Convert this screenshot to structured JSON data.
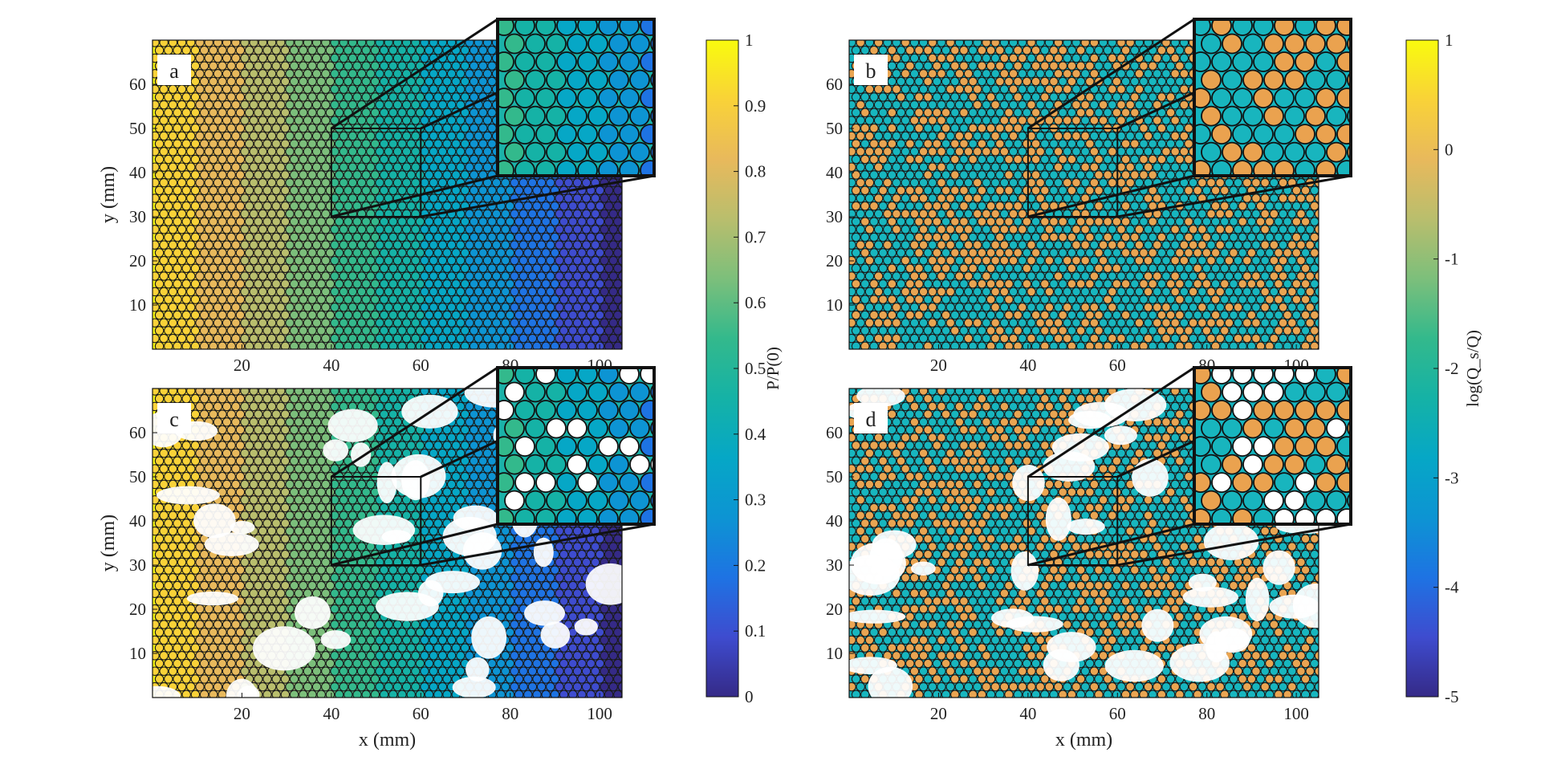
{
  "colors": {
    "parula": [
      "#352a87",
      "#3e4ccf",
      "#1e73e3",
      "#0d94d3",
      "#06a7c6",
      "#15b2a6",
      "#33b98c",
      "#7cbf7b",
      "#b9be6d",
      "#e8b95c",
      "#f9d238",
      "#f9fb0e"
    ],
    "frame": "#111111",
    "panel_bg": "#ffffff"
  },
  "chart_data": [
    {
      "type": "heatmap",
      "panel": "a",
      "label": "a",
      "xlabel": "",
      "ylabel": "y (mm)",
      "xlim": [
        0,
        105
      ],
      "ylim": [
        0,
        70
      ],
      "x_ticks": [
        20,
        40,
        60,
        80,
        100
      ],
      "y_ticks": [
        10,
        20,
        30,
        40,
        50,
        60
      ],
      "field": "P/P(0)",
      "trend": "decreases from 1 at x = 0 to about 0.05 at x = 105",
      "inset_region": {
        "x": [
          40,
          60
        ],
        "y": [
          30,
          50
        ]
      }
    },
    {
      "type": "heatmap",
      "panel": "b",
      "label": "b",
      "xlabel": "",
      "ylabel": "",
      "xlim": [
        0,
        105
      ],
      "ylim": [
        0,
        70
      ],
      "x_ticks": [
        20,
        40,
        60,
        80,
        100
      ],
      "y_ticks": [
        10,
        20,
        30,
        40,
        50,
        60
      ],
      "field": "log(Q_s/Q)",
      "trend": "mix of about 0 (orange throats) and -2 (teal pores)",
      "inset_region": {
        "x": [
          40,
          60
        ],
        "y": [
          30,
          50
        ]
      }
    },
    {
      "type": "heatmap",
      "panel": "c",
      "label": "c",
      "xlabel": "x (mm)",
      "ylabel": "y (mm)",
      "xlim": [
        0,
        105
      ],
      "ylim": [
        0,
        70
      ],
      "x_ticks": [
        20,
        40,
        60,
        80,
        100
      ],
      "y_ticks": [
        10,
        20,
        30,
        40,
        50,
        60
      ],
      "field": "P/P(0)",
      "trend": "patchy network with void regions; pressure decreasing along x",
      "inset_region": {
        "x": [
          40,
          60
        ],
        "y": [
          30,
          50
        ]
      }
    },
    {
      "type": "heatmap",
      "panel": "d",
      "label": "d",
      "xlabel": "x (mm)",
      "ylabel": "",
      "xlim": [
        0,
        105
      ],
      "ylim": [
        0,
        70
      ],
      "x_ticks": [
        20,
        40,
        60,
        80,
        100
      ],
      "y_ticks": [
        10,
        20,
        30,
        40,
        50,
        60
      ],
      "field": "log(Q_s/Q)",
      "trend": "patchy network with void regions; teal and dark blue clusters",
      "inset_region": {
        "x": [
          40,
          60
        ],
        "y": [
          30,
          50
        ]
      }
    }
  ],
  "colorbars": [
    {
      "id": "pressure",
      "label": "P/P(0)",
      "range": [
        0,
        1
      ],
      "ticks": [
        "0",
        "0.1",
        "0.2",
        "0.3",
        "0.4",
        "0.5",
        "0.6",
        "0.7",
        "0.8",
        "0.9",
        "1"
      ]
    },
    {
      "id": "flux",
      "label": "log(Q_s/Q)",
      "range": [
        -5,
        1
      ],
      "ticks": [
        "-5",
        "-4",
        "-3",
        "-2",
        "-1",
        "0",
        "1"
      ]
    }
  ]
}
